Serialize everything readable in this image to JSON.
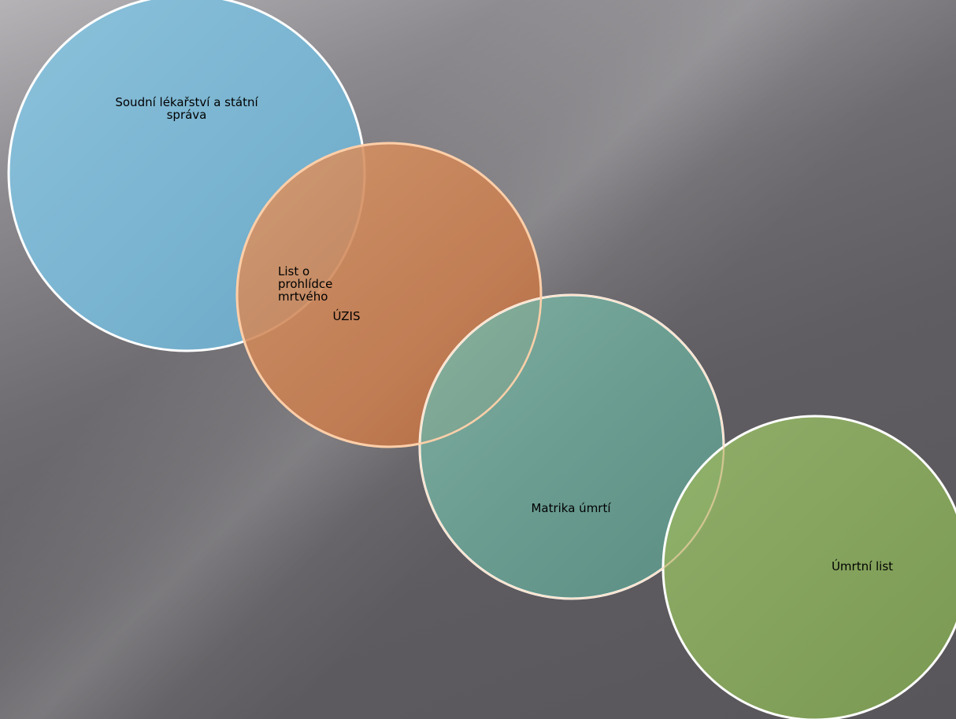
{
  "diagram": {
    "type": "overlapping-circles",
    "circles": [
      {
        "label": "Soudní lékařství a státní správa",
        "color": "#7fb8d3"
      },
      {
        "label": "ÚZIS",
        "color": "#d28150"
      },
      {
        "label": "Matrika úmrtí",
        "color": "#6aa89a"
      },
      {
        "label": "Úmrtní list",
        "color": "#88aa5a"
      }
    ],
    "overlap_label": "List o prohlídce mrtvého",
    "outline_color": "#ffffff"
  }
}
